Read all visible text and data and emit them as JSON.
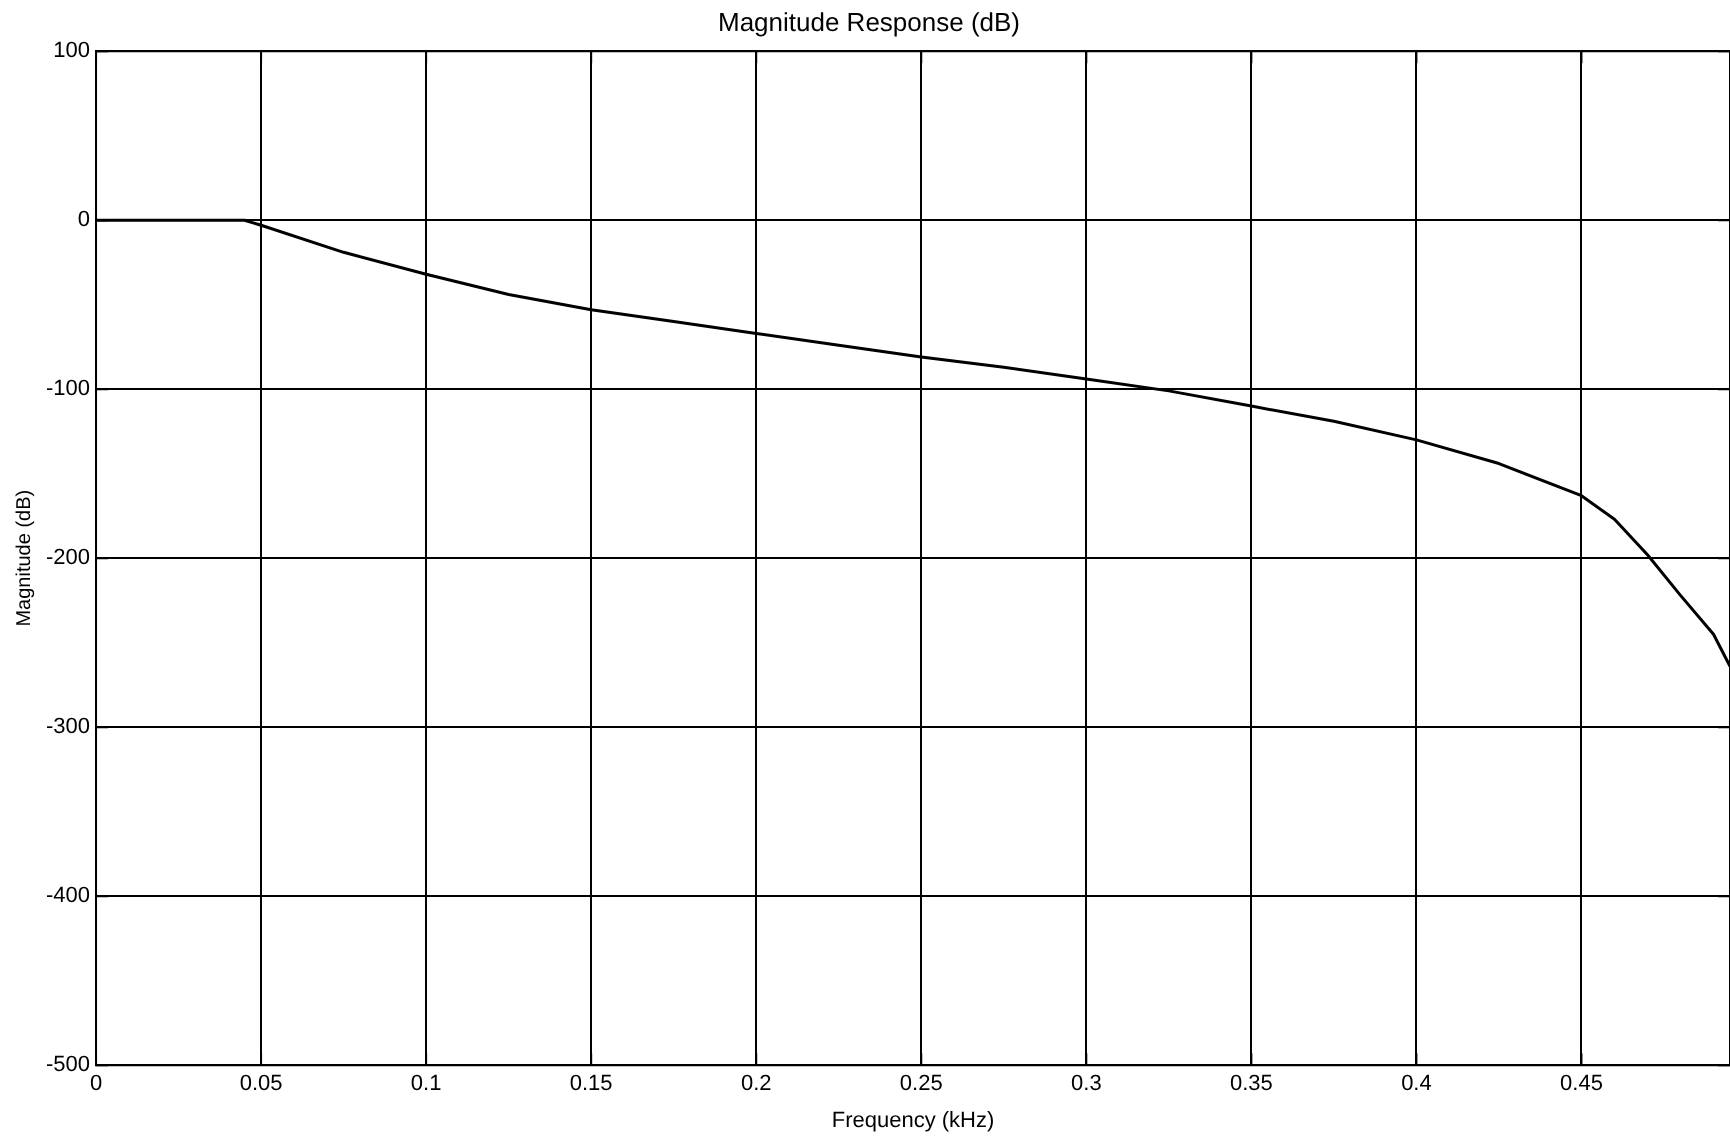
{
  "chart_data": {
    "type": "line",
    "title": "Magnitude Response (dB)",
    "xlabel": "Frequency (kHz)",
    "ylabel": "Magnitude (dB)",
    "xlim": [
      0,
      0.495
    ],
    "xticks": [
      0,
      0.05,
      0.1,
      0.15,
      0.2,
      0.25,
      0.3,
      0.35,
      0.4,
      0.45
    ],
    "ylim": [
      -500,
      100
    ],
    "yticks": [
      -500,
      -400,
      -300,
      -200,
      -100,
      0,
      100
    ],
    "grid": true,
    "marker": "none",
    "line_style": "solid",
    "series": [
      {
        "color": "#000000",
        "x": [
          0,
          0.025,
          0.045,
          0.05,
          0.075,
          0.1,
          0.125,
          0.15,
          0.175,
          0.2,
          0.225,
          0.25,
          0.275,
          0.3,
          0.325,
          0.35,
          0.375,
          0.4,
          0.425,
          0.45,
          0.46,
          0.47,
          0.48,
          0.49,
          0.495
        ],
        "values": [
          0,
          0,
          0,
          -3,
          -19,
          -32,
          -44,
          -53,
          -60,
          -67,
          -74,
          -81,
          -87,
          -94,
          -101,
          -110,
          -119,
          -130,
          -144,
          -163,
          -177,
          -198,
          -222,
          -245,
          -264
        ]
      }
    ]
  }
}
